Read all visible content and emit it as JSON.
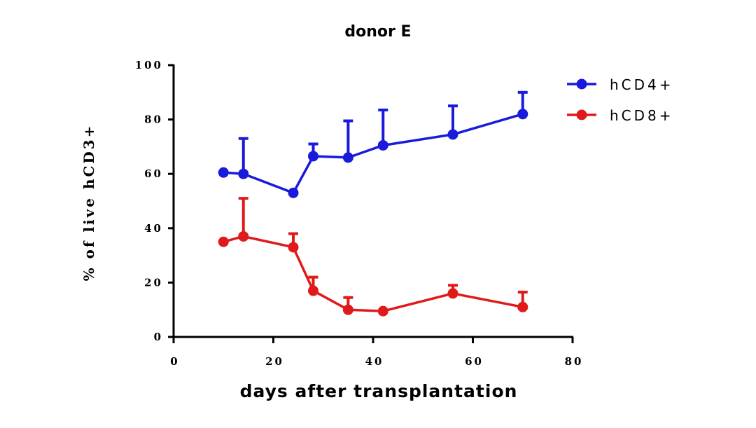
{
  "chart_data": {
    "type": "line",
    "title": "donor E",
    "xlabel": "days after transplantation",
    "ylabel": "% of live hCD3+",
    "xlim": [
      0,
      80
    ],
    "ylim": [
      0,
      100
    ],
    "xticks": [
      0,
      20,
      40,
      60,
      80
    ],
    "yticks": [
      0,
      20,
      40,
      60,
      80,
      100
    ],
    "xtick_labels": [
      "0",
      "20",
      "40",
      "60",
      "80"
    ],
    "ytick_labels": [
      "0",
      "20",
      "40",
      "60",
      "80",
      "100"
    ],
    "grid": false,
    "legend_position": "top-right",
    "error_bars": "upper",
    "series": [
      {
        "name": "hCD4+",
        "color": "#1a1adb",
        "x": [
          10,
          14,
          24,
          28,
          35,
          42,
          56,
          70
        ],
        "y": [
          60.5,
          60,
          53,
          66.5,
          66,
          70.5,
          74.5,
          82
        ],
        "err": [
          0,
          13,
          0,
          4.5,
          13.5,
          13,
          10.5,
          8
        ]
      },
      {
        "name": "hCD8+",
        "color": "#e01a1a",
        "x": [
          10,
          14,
          24,
          28,
          35,
          42,
          56,
          70
        ],
        "y": [
          35,
          37,
          33,
          17,
          10,
          9.5,
          16,
          11
        ],
        "err": [
          0,
          14,
          5,
          5,
          4.5,
          0,
          3,
          5.5
        ]
      }
    ]
  }
}
